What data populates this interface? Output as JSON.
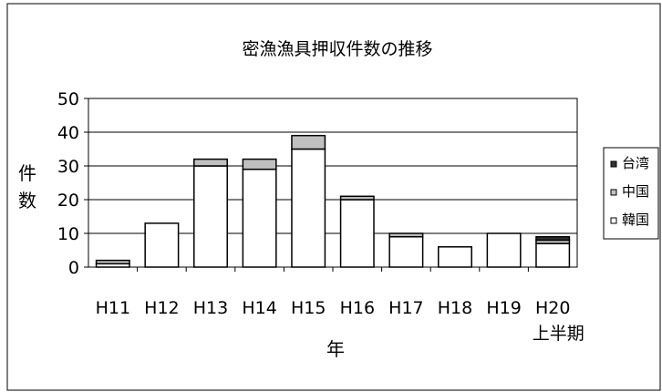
{
  "chart_data": {
    "type": "bar",
    "stacked": true,
    "title": "密漁漁具押収件数の推移",
    "xlabel": "年",
    "ylabel": "件数",
    "ylabel_chars": [
      "件",
      "数"
    ],
    "ylim": [
      0,
      50
    ],
    "yticks": [
      0,
      10,
      20,
      30,
      40,
      50
    ],
    "grid": true,
    "legend_position": "right",
    "categories": [
      "H11",
      "H12",
      "H13",
      "H14",
      "H15",
      "H16",
      "H17",
      "H18",
      "H19",
      "H20"
    ],
    "category_sublabels": [
      "",
      "",
      "",
      "",
      "",
      "",
      "",
      "",
      "",
      "上半期"
    ],
    "series": [
      {
        "name": "韓国",
        "color": "#ffffff",
        "values": [
          1,
          13,
          30,
          29,
          35,
          20,
          9,
          6,
          10,
          7
        ]
      },
      {
        "name": "中国",
        "color": "#c0c0c0",
        "values": [
          1,
          0,
          2,
          3,
          4,
          1,
          1,
          0,
          0,
          1
        ]
      },
      {
        "name": "台湾",
        "color": "#333333",
        "values": [
          0,
          0,
          0,
          0,
          0,
          0,
          0,
          0,
          0,
          1
        ]
      }
    ],
    "legend_order": [
      "台湾",
      "中国",
      "韓国"
    ]
  }
}
